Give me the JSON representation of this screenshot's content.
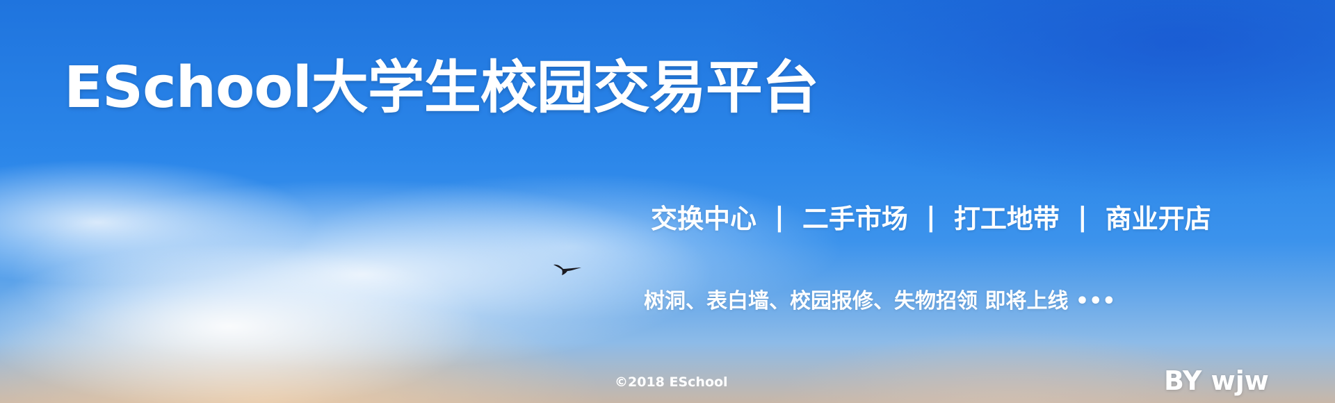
{
  "banner": {
    "title": "ESchool大学生校园交易平台",
    "nav": [
      {
        "label": "交换中心"
      },
      {
        "label": "二手市场"
      },
      {
        "label": "打工地带"
      },
      {
        "label": "商业开店"
      }
    ],
    "separator": "|",
    "coming_soon": "树洞、表白墙、校园报修、失物招领 即将上线 •••",
    "copyright": "©2018 ESchool",
    "author": "BY wjw",
    "colors": {
      "sky_blue": "#2b86e9",
      "text": "#ffffff"
    },
    "icons": {
      "bird": "bird-silhouette-icon"
    }
  }
}
